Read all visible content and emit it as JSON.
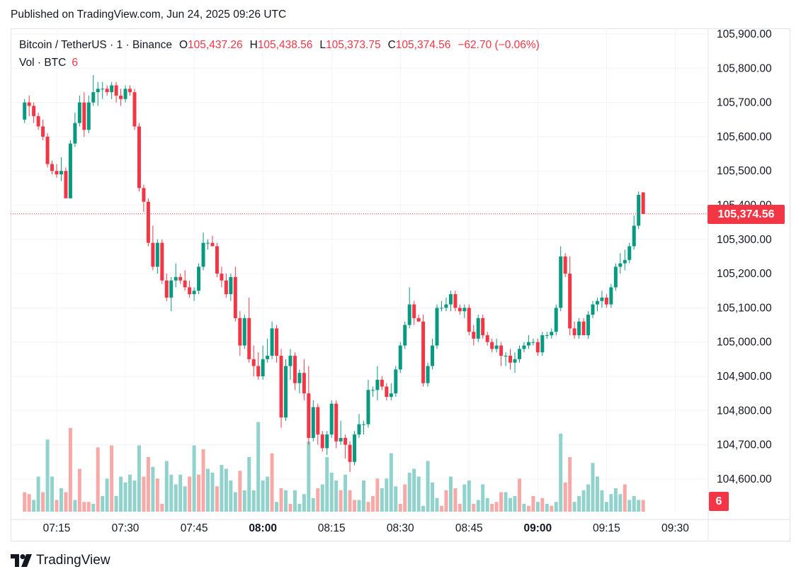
{
  "header": {
    "published": "Published on TradingView.com, Jun 24, 2025 09:26 UTC"
  },
  "legend": {
    "symbol": "Bitcoin / TetherUS · 1 · Binance",
    "open_label": "O",
    "open": "105,437.26",
    "high_label": "H",
    "high": "105,438.56",
    "low_label": "L",
    "low": "105,373.75",
    "close_label": "C",
    "close": "105,374.56",
    "change": "−62.70 (−0.06%)"
  },
  "volume_legend": {
    "label": "Vol · BTC",
    "value": "6"
  },
  "last_price_tag": "105,374.56",
  "volume_tag": "6",
  "footer": {
    "brand": "TradingView"
  },
  "colors": {
    "up": "#089981",
    "down": "#f23645",
    "up_volume": "#92d2cc",
    "down_volume": "#f7a9a7",
    "grid": "#f0f3fa"
  },
  "chart_data": {
    "type": "candlestick",
    "title": "Bitcoin / TetherUS · 1 · Binance",
    "interval_minutes": 1,
    "y_ticks": [
      "105,900.00",
      "105,800.00",
      "105,700.00",
      "105,600.00",
      "105,500.00",
      "105,400.00",
      "105,300.00",
      "105,200.00",
      "105,100.00",
      "105,000.00",
      "104,900.00",
      "104,800.00",
      "104,700.00",
      "104,600.00"
    ],
    "x_ticks": [
      "07:15",
      "07:30",
      "07:45",
      "08:00",
      "08:15",
      "08:30",
      "08:45",
      "09:00",
      "09:15",
      "09:30"
    ],
    "x_ticks_bold": [
      "08:00",
      "09:00"
    ],
    "ylim": [
      104540,
      105910
    ],
    "last_price": 105374.56,
    "start_time": "07:08",
    "candles": [
      [
        105650,
        105710,
        105640,
        105700
      ],
      [
        105700,
        105720,
        105660,
        105690
      ],
      [
        105690,
        105700,
        105640,
        105660
      ],
      [
        105660,
        105670,
        105620,
        105630
      ],
      [
        105630,
        105650,
        105590,
        105600
      ],
      [
        105600,
        105610,
        105510,
        105520
      ],
      [
        105520,
        105530,
        105490,
        105500
      ],
      [
        105500,
        105520,
        105480,
        105490
      ],
      [
        105490,
        105540,
        105470,
        105500
      ],
      [
        105500,
        105510,
        105420,
        105420
      ],
      [
        105420,
        105590,
        105420,
        105580
      ],
      [
        105580,
        105670,
        105570,
        105640
      ],
      [
        105640,
        105720,
        105630,
        105700
      ],
      [
        105700,
        105730,
        105600,
        105620
      ],
      [
        105620,
        105720,
        105610,
        105700
      ],
      [
        105700,
        105780,
        105690,
        105730
      ],
      [
        105730,
        105760,
        105690,
        105740
      ],
      [
        105740,
        105760,
        105710,
        105740
      ],
      [
        105740,
        105750,
        105720,
        105730
      ],
      [
        105730,
        105760,
        105710,
        105750
      ],
      [
        105750,
        105760,
        105700,
        105720
      ],
      [
        105720,
        105740,
        105690,
        105710
      ],
      [
        105710,
        105750,
        105700,
        105740
      ],
      [
        105740,
        105750,
        105720,
        105730
      ],
      [
        105730,
        105740,
        105620,
        105630
      ],
      [
        105630,
        105640,
        105440,
        105450
      ],
      [
        105450,
        105460,
        105380,
        105410
      ],
      [
        105410,
        105420,
        105280,
        105290
      ],
      [
        105290,
        105340,
        105210,
        105220
      ],
      [
        105220,
        105300,
        105200,
        105290
      ],
      [
        105290,
        105300,
        105170,
        105180
      ],
      [
        105180,
        105200,
        105120,
        105130
      ],
      [
        105130,
        105190,
        105090,
        105180
      ],
      [
        105180,
        105230,
        105160,
        105190
      ],
      [
        105190,
        105200,
        105170,
        105180
      ],
      [
        105180,
        105210,
        105150,
        105160
      ],
      [
        105160,
        105180,
        105130,
        105140
      ],
      [
        105140,
        105160,
        105120,
        105150
      ],
      [
        105150,
        105230,
        105140,
        105220
      ],
      [
        105220,
        105320,
        105210,
        105290
      ],
      [
        105290,
        105300,
        105270,
        105290
      ],
      [
        105290,
        105310,
        105280,
        105280
      ],
      [
        105280,
        105290,
        105190,
        105200
      ],
      [
        105200,
        105220,
        105160,
        105180
      ],
      [
        105180,
        105200,
        105130,
        105140
      ],
      [
        105140,
        105200,
        105120,
        105190
      ],
      [
        105190,
        105220,
        105060,
        105070
      ],
      [
        105070,
        105090,
        104960,
        104990
      ],
      [
        104990,
        105080,
        104980,
        105070
      ],
      [
        105070,
        105130,
        104940,
        104950
      ],
      [
        104950,
        104990,
        104900,
        104930
      ],
      [
        104930,
        104970,
        104890,
        104900
      ],
      [
        104900,
        104990,
        104890,
        104950
      ],
      [
        104950,
        105010,
        104940,
        104960
      ],
      [
        104960,
        105060,
        104950,
        105040
      ],
      [
        105040,
        105050,
        104940,
        104960
      ],
      [
        104960,
        104980,
        104750,
        104780
      ],
      [
        104780,
        104950,
        104770,
        104930
      ],
      [
        104930,
        104980,
        104890,
        104960
      ],
      [
        104960,
        104970,
        104860,
        104880
      ],
      [
        104880,
        104920,
        104850,
        104910
      ],
      [
        104910,
        104950,
        104830,
        104850
      ],
      [
        104850,
        104930,
        104700,
        104720
      ],
      [
        104720,
        104830,
        104710,
        104810
      ],
      [
        104810,
        104820,
        104700,
        104730
      ],
      [
        104730,
        104740,
        104680,
        104690
      ],
      [
        104690,
        104740,
        104670,
        104730
      ],
      [
        104730,
        104830,
        104720,
        104820
      ],
      [
        104820,
        104830,
        104690,
        104710
      ],
      [
        104710,
        104770,
        104700,
        104720
      ],
      [
        104720,
        104730,
        104660,
        104700
      ],
      [
        104700,
        104710,
        104620,
        104650
      ],
      [
        104650,
        104740,
        104640,
        104730
      ],
      [
        104730,
        104790,
        104720,
        104760
      ],
      [
        104760,
        104770,
        104730,
        104760
      ],
      [
        104760,
        104890,
        104750,
        104860
      ],
      [
        104860,
        104870,
        104840,
        104860
      ],
      [
        104860,
        104930,
        104830,
        104890
      ],
      [
        104890,
        104900,
        104860,
        104870
      ],
      [
        104870,
        104880,
        104830,
        104840
      ],
      [
        104840,
        104880,
        104830,
        104850
      ],
      [
        104850,
        104930,
        104840,
        104920
      ],
      [
        104920,
        105000,
        104910,
        104990
      ],
      [
        104990,
        105060,
        104980,
        105050
      ],
      [
        105050,
        105160,
        105040,
        105110
      ],
      [
        105110,
        105120,
        105050,
        105070
      ],
      [
        105070,
        105080,
        105060,
        105060
      ],
      [
        105060,
        105080,
        104870,
        104880
      ],
      [
        104880,
        104940,
        104870,
        104930
      ],
      [
        104930,
        105010,
        104920,
        104990
      ],
      [
        104990,
        105110,
        104980,
        105100
      ],
      [
        105100,
        105120,
        105090,
        105100
      ],
      [
        105100,
        105130,
        105090,
        105110
      ],
      [
        105110,
        105150,
        105090,
        105140
      ],
      [
        105140,
        105150,
        105090,
        105100
      ],
      [
        105100,
        105110,
        105080,
        105090
      ],
      [
        105090,
        105110,
        105070,
        105100
      ],
      [
        105100,
        105110,
        105020,
        105030
      ],
      [
        105030,
        105050,
        104990,
        105010
      ],
      [
        105010,
        105080,
        105000,
        105070
      ],
      [
        105070,
        105080,
        105010,
        105020
      ],
      [
        105020,
        105030,
        104990,
        105000
      ],
      [
        105000,
        105010,
        104970,
        104980
      ],
      [
        104980,
        105010,
        104970,
        104990
      ],
      [
        104990,
        105000,
        104930,
        104960
      ],
      [
        104960,
        104970,
        104930,
        104960
      ],
      [
        104960,
        104980,
        104920,
        104940
      ],
      [
        104940,
        104970,
        104910,
        104950
      ],
      [
        104950,
        104990,
        104940,
        104980
      ],
      [
        104980,
        105000,
        104970,
        104990
      ],
      [
        104990,
        105020,
        104980,
        105000
      ],
      [
        105000,
        105010,
        104990,
        105000
      ],
      [
        105000,
        105010,
        104960,
        104970
      ],
      [
        104970,
        105030,
        104960,
        105020
      ],
      [
        105020,
        105030,
        105010,
        105020
      ],
      [
        105020,
        105040,
        105010,
        105030
      ],
      [
        105030,
        105110,
        105020,
        105100
      ],
      [
        105100,
        105280,
        105090,
        105250
      ],
      [
        105250,
        105260,
        105190,
        105200
      ],
      [
        105200,
        105250,
        105020,
        105040
      ],
      [
        105040,
        105060,
        105010,
        105020
      ],
      [
        105020,
        105070,
        105010,
        105060
      ],
      [
        105060,
        105070,
        105020,
        105020
      ],
      [
        105020,
        105090,
        105010,
        105080
      ],
      [
        105080,
        105120,
        105070,
        105110
      ],
      [
        105110,
        105130,
        105090,
        105120
      ],
      [
        105120,
        105150,
        105100,
        105130
      ],
      [
        105130,
        105140,
        105100,
        105110
      ],
      [
        105110,
        105170,
        105100,
        105160
      ],
      [
        105160,
        105230,
        105150,
        105220
      ],
      [
        105220,
        105260,
        105200,
        105230
      ],
      [
        105230,
        105270,
        105210,
        105240
      ],
      [
        105240,
        105290,
        105230,
        105280
      ],
      [
        105280,
        105370,
        105270,
        105340
      ],
      [
        105340,
        105440,
        105330,
        105430
      ],
      [
        105437.26,
        105438.56,
        105373.75,
        105374.56
      ]
    ],
    "volume": [
      [
        0,
        10
      ],
      [
        0,
        9
      ],
      [
        1,
        6
      ],
      [
        1,
        18
      ],
      [
        0,
        10
      ],
      [
        1,
        37
      ],
      [
        1,
        18
      ],
      [
        0,
        6
      ],
      [
        1,
        12
      ],
      [
        0,
        10
      ],
      [
        0,
        43
      ],
      [
        1,
        6
      ],
      [
        0,
        22
      ],
      [
        0,
        5
      ],
      [
        0,
        5
      ],
      [
        1,
        4
      ],
      [
        0,
        33
      ],
      [
        1,
        8
      ],
      [
        1,
        17
      ],
      [
        0,
        34
      ],
      [
        1,
        8
      ],
      [
        1,
        18
      ],
      [
        1,
        15
      ],
      [
        1,
        19
      ],
      [
        1,
        16
      ],
      [
        1,
        34
      ],
      [
        0,
        18
      ],
      [
        0,
        28
      ],
      [
        1,
        23
      ],
      [
        0,
        17
      ],
      [
        0,
        4
      ],
      [
        1,
        26
      ],
      [
        1,
        19
      ],
      [
        1,
        14
      ],
      [
        1,
        19
      ],
      [
        1,
        13
      ],
      [
        0,
        18
      ],
      [
        1,
        34
      ],
      [
        0,
        19
      ],
      [
        0,
        32
      ],
      [
        1,
        22
      ],
      [
        1,
        20
      ],
      [
        0,
        13
      ],
      [
        1,
        24
      ],
      [
        1,
        22
      ],
      [
        1,
        16
      ],
      [
        1,
        10
      ],
      [
        0,
        21
      ],
      [
        1,
        11
      ],
      [
        1,
        28
      ],
      [
        1,
        11
      ],
      [
        1,
        46
      ],
      [
        1,
        16
      ],
      [
        1,
        18
      ],
      [
        0,
        30
      ],
      [
        1,
        5
      ],
      [
        0,
        12
      ],
      [
        1,
        11
      ],
      [
        0,
        4
      ],
      [
        1,
        11
      ],
      [
        1,
        4
      ],
      [
        1,
        9
      ],
      [
        1,
        36
      ],
      [
        1,
        7
      ],
      [
        0,
        12
      ],
      [
        1,
        14
      ],
      [
        1,
        28
      ],
      [
        1,
        20
      ],
      [
        1,
        16
      ],
      [
        0,
        11
      ],
      [
        1,
        19
      ],
      [
        0,
        11
      ],
      [
        0,
        6
      ],
      [
        1,
        6
      ],
      [
        1,
        16
      ],
      [
        0,
        5
      ],
      [
        0,
        8
      ],
      [
        0,
        17
      ],
      [
        1,
        12
      ],
      [
        1,
        17
      ],
      [
        1,
        30
      ],
      [
        1,
        13
      ],
      [
        0,
        4
      ],
      [
        0,
        14
      ],
      [
        1,
        20
      ],
      [
        1,
        22
      ],
      [
        1,
        18
      ],
      [
        1,
        3
      ],
      [
        1,
        26
      ],
      [
        1,
        15
      ],
      [
        1,
        7
      ],
      [
        0,
        3
      ],
      [
        0,
        11
      ],
      [
        1,
        18
      ],
      [
        0,
        12
      ],
      [
        0,
        4
      ],
      [
        1,
        14
      ],
      [
        1,
        16
      ],
      [
        0,
        4
      ],
      [
        1,
        6
      ],
      [
        1,
        14
      ],
      [
        1,
        7
      ],
      [
        0,
        4
      ],
      [
        0,
        5
      ],
      [
        0,
        10
      ],
      [
        1,
        10
      ],
      [
        1,
        7
      ],
      [
        1,
        8
      ],
      [
        0,
        17
      ],
      [
        1,
        4
      ],
      [
        0,
        3
      ],
      [
        0,
        8
      ],
      [
        1,
        5
      ],
      [
        0,
        7
      ],
      [
        1,
        4
      ],
      [
        0,
        3
      ],
      [
        1,
        5
      ],
      [
        1,
        40
      ],
      [
        0,
        15
      ],
      [
        0,
        28
      ],
      [
        1,
        5
      ],
      [
        1,
        8
      ],
      [
        1,
        11
      ],
      [
        1,
        14
      ],
      [
        1,
        25
      ],
      [
        1,
        18
      ],
      [
        1,
        11
      ],
      [
        1,
        5
      ],
      [
        1,
        9
      ],
      [
        1,
        12
      ],
      [
        1,
        9
      ],
      [
        0,
        14
      ],
      [
        1,
        6
      ],
      [
        1,
        8
      ],
      [
        1,
        6
      ],
      [
        0,
        6
      ]
    ]
  }
}
